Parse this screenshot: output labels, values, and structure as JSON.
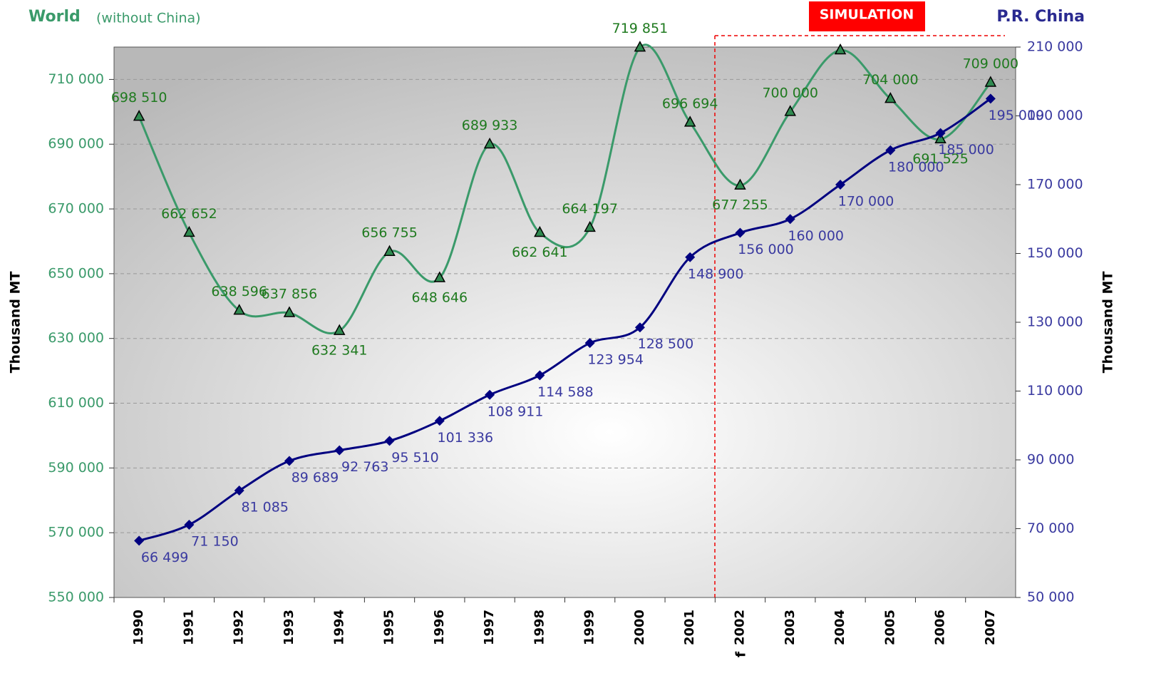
{
  "chart_data": {
    "type": "line",
    "subtitle": "(without China)",
    "banner": "SIMULATION",
    "ylabel": "Thousand MT",
    "y2label": "Thousand MT",
    "annotation": "f",
    "categories": [
      "1990",
      "1991",
      "1992",
      "1993",
      "1994",
      "1995",
      "1996",
      "1997",
      "1998",
      "1999",
      "2000",
      "2001",
      "2002",
      "2003",
      "2004",
      "2005",
      "2006",
      "2007"
    ],
    "series": [
      {
        "name": "World",
        "color": "#3a9a6a",
        "axis": "y",
        "values": [
          698510,
          662652,
          638596,
          637856,
          632341,
          656755,
          648646,
          689933,
          662641,
          664197,
          719851,
          696694,
          677255,
          700000,
          719000,
          704000,
          691525,
          709000
        ],
        "value_labels": [
          "698 510",
          "662 652",
          "638 596",
          "637 856",
          "632 341",
          "656 755",
          "648 646",
          "689 933",
          "662 641",
          "664 197",
          "719 851",
          "696 694",
          "677 255",
          "700 000",
          null,
          "704 000",
          "691 525",
          "709 000"
        ]
      },
      {
        "name": "P.R. China",
        "color": "#000080",
        "axis": "y2",
        "values": [
          66499,
          71150,
          81085,
          89689,
          92763,
          95510,
          101336,
          108911,
          114588,
          123954,
          128500,
          148900,
          156000,
          160000,
          170000,
          180000,
          185000,
          195000
        ],
        "value_labels": [
          "66 499",
          "71 150",
          "81 085",
          "89 689",
          "92 763",
          "95 510",
          "101 336",
          "108 911",
          "114 588",
          "123 954",
          "128 500",
          "148 900",
          "156 000",
          "160 000",
          "170 000",
          "180 000",
          "185 000",
          "195 000"
        ]
      }
    ],
    "ylim": [
      550000,
      720000
    ],
    "yticks": [
      {
        "value": 550000,
        "label": "550 000"
      },
      {
        "value": 570000,
        "label": "570 000"
      },
      {
        "value": 590000,
        "label": "590 000"
      },
      {
        "value": 610000,
        "label": "610 000"
      },
      {
        "value": 630000,
        "label": "630 000"
      },
      {
        "value": 650000,
        "label": "650 000"
      },
      {
        "value": 670000,
        "label": "670 000"
      },
      {
        "value": 690000,
        "label": "690 000"
      },
      {
        "value": 710000,
        "label": "710 000"
      }
    ],
    "y2lim": [
      50000,
      210000
    ],
    "y2ticks": [
      {
        "value": 50000,
        "label": "50 000"
      },
      {
        "value": 70000,
        "label": "70 000"
      },
      {
        "value": 90000,
        "label": "90 000"
      },
      {
        "value": 110000,
        "label": "110 000"
      },
      {
        "value": 130000,
        "label": "130 000"
      },
      {
        "value": 150000,
        "label": "150 000"
      },
      {
        "value": 170000,
        "label": "170 000"
      },
      {
        "value": 190000,
        "label": "190 000"
      },
      {
        "value": 210000,
        "label": "210 000"
      }
    ],
    "grid": true
  }
}
